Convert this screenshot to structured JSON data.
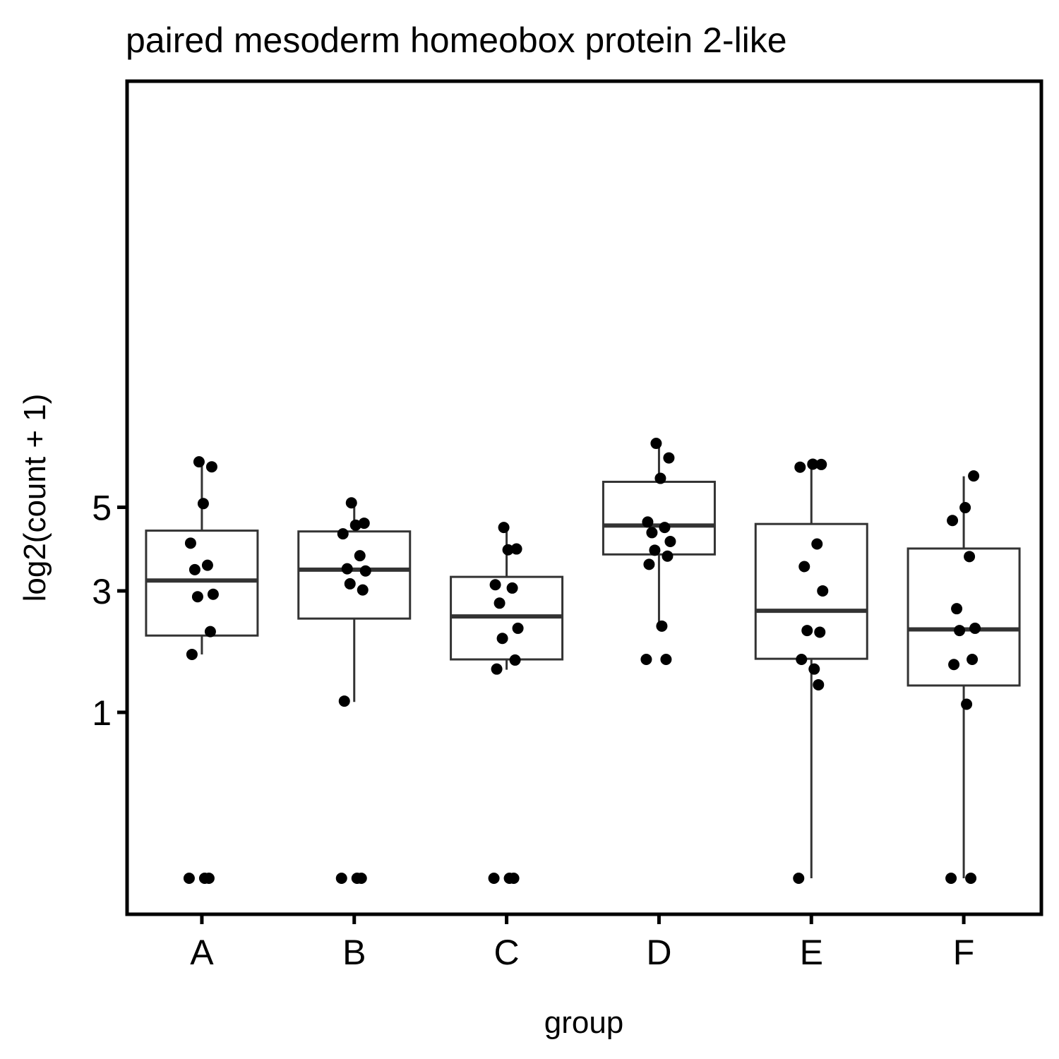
{
  "chart_data": {
    "type": "boxplot",
    "title": "paired mesoderm homeobox protein 2-like",
    "xlabel": "group",
    "ylabel": "log2(count + 1)",
    "y_scale": "sqrt",
    "yticks": [
      1,
      3,
      5
    ],
    "ylim": [
      0.0,
      6.95
    ],
    "grid": false,
    "legend": "none",
    "categories": [
      "A",
      "B",
      "C",
      "D",
      "E",
      "F"
    ],
    "boxes": [
      {
        "group": "A",
        "whisker_low": 1.82,
        "q1": 2.14,
        "median": 3.22,
        "q3": 4.39,
        "whisker_high": 6.29
      },
      {
        "group": "B",
        "whisker_low": 1.13,
        "q1": 2.45,
        "median": 3.46,
        "q3": 4.37,
        "whisker_high": 5.13
      },
      {
        "group": "C",
        "whisker_low": 1.58,
        "q1": 1.74,
        "median": 2.49,
        "q3": 3.3,
        "whisker_high": 4.46
      },
      {
        "group": "D",
        "whisker_low": 2.32,
        "q1": 3.81,
        "median": 4.52,
        "q3": 5.71,
        "whisker_high": 6.87
      },
      {
        "group": "E",
        "whisker_low": 0.0,
        "q1": 1.75,
        "median": 2.6,
        "q3": 4.56,
        "whisker_high": 6.18
      },
      {
        "group": "F",
        "whisker_low": 0.0,
        "q1": 1.35,
        "median": 2.25,
        "q3": 3.95,
        "whisker_high": 5.87
      }
    ],
    "points": [
      {
        "group": "A",
        "values": [
          0.0,
          0.0,
          0.0,
          1.82,
          2.21,
          2.88,
          2.93,
          3.46,
          3.56,
          4.08,
          5.1,
          6.15,
          6.3
        ]
      },
      {
        "group": "B",
        "values": [
          0.0,
          0.0,
          0.0,
          1.14,
          3.02,
          3.15,
          3.43,
          3.48,
          3.78,
          4.31,
          4.53,
          4.58,
          5.12
        ]
      },
      {
        "group": "C",
        "values": [
          0.0,
          0.0,
          0.0,
          1.59,
          1.73,
          2.09,
          2.27,
          2.75,
          3.06,
          3.13,
          3.92,
          3.94,
          4.47
        ]
      },
      {
        "group": "D",
        "values": [
          1.74,
          1.74,
          2.31,
          3.58,
          3.77,
          3.91,
          4.12,
          4.34,
          4.47,
          4.61,
          5.81,
          6.42,
          6.87
        ]
      },
      {
        "group": "E",
        "values": [
          0.0,
          1.36,
          1.59,
          1.74,
          2.2,
          2.23,
          3.0,
          3.53,
          4.06,
          6.14,
          6.23,
          6.22
        ]
      },
      {
        "group": "F",
        "values": [
          0.0,
          0.0,
          1.1,
          1.66,
          1.74,
          2.23,
          2.27,
          2.64,
          3.76,
          4.65,
          4.99,
          5.88
        ]
      }
    ]
  }
}
